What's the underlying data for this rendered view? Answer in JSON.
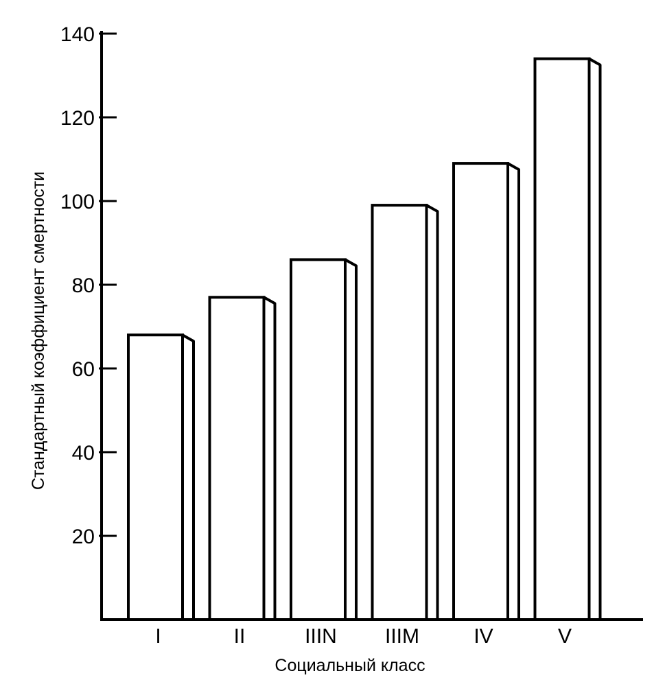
{
  "chart_data": {
    "type": "bar",
    "title": "",
    "xlabel": "Социальный класс",
    "ylabel": "Стандартный коэффициент смертности",
    "categories": [
      "I",
      "II",
      "IIIN",
      "IIIM",
      "IV",
      "V"
    ],
    "values": [
      68,
      77,
      86,
      99,
      109,
      134
    ],
    "ylim": [
      0,
      140
    ],
    "yticks": [
      20,
      40,
      60,
      80,
      100,
      120,
      140
    ],
    "grid": false,
    "bar_style": "3d-outline",
    "colors": {
      "bar_fill": "#ffffff",
      "stroke": "#000000"
    }
  }
}
